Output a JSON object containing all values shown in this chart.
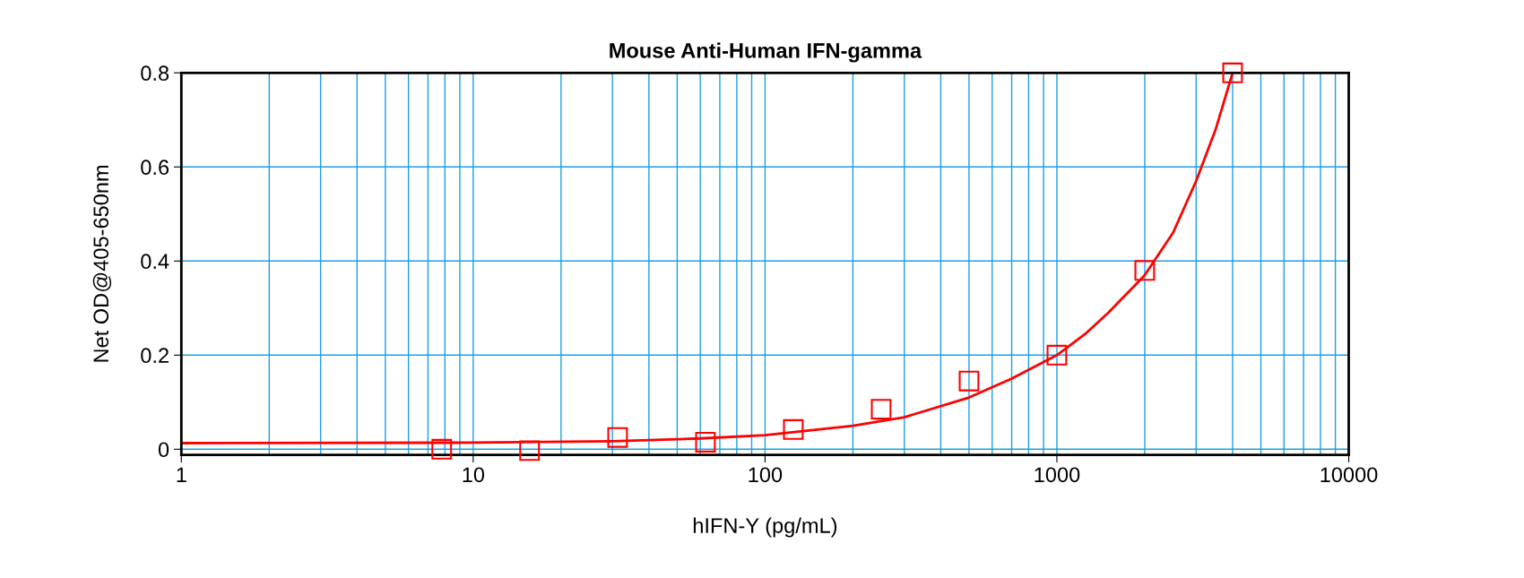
{
  "chart_data": {
    "type": "scatter",
    "title": "Mouse Anti-Human IFN-gamma",
    "xlabel": "hIFN-Y (pg/mL)",
    "ylabel": "Net OD@405-650nm",
    "log": "x",
    "grid": true,
    "marker": "square",
    "xlim": [
      1,
      10000
    ],
    "xticks": [
      1,
      10,
      100,
      1000,
      10000
    ],
    "ylim": [
      -0.012,
      0.8
    ],
    "yticks": [
      0,
      0.2,
      0.4,
      0.6,
      0.8
    ],
    "series": [
      {
        "color": "#ff0000",
        "x": [
          7.8,
          15.6,
          31.25,
          62.5,
          125,
          250,
          500,
          1000,
          2000,
          4000
        ],
        "values": [
          0.0,
          -0.003,
          0.025,
          0.015,
          0.042,
          0.085,
          0.145,
          0.2,
          0.38,
          0.8
        ]
      },
      {
        "type": "line",
        "color": "#ff0000",
        "marker": "none",
        "x": [
          1,
          10,
          30,
          60,
          100,
          200,
          300,
          500,
          700,
          1000,
          1250,
          1500,
          2000,
          2500,
          3000,
          3500,
          4000
        ],
        "values": [
          0.013,
          0.014,
          0.017,
          0.023,
          0.03,
          0.05,
          0.068,
          0.11,
          0.15,
          0.2,
          0.245,
          0.29,
          0.37,
          0.46,
          0.57,
          0.68,
          0.8
        ]
      }
    ]
  }
}
